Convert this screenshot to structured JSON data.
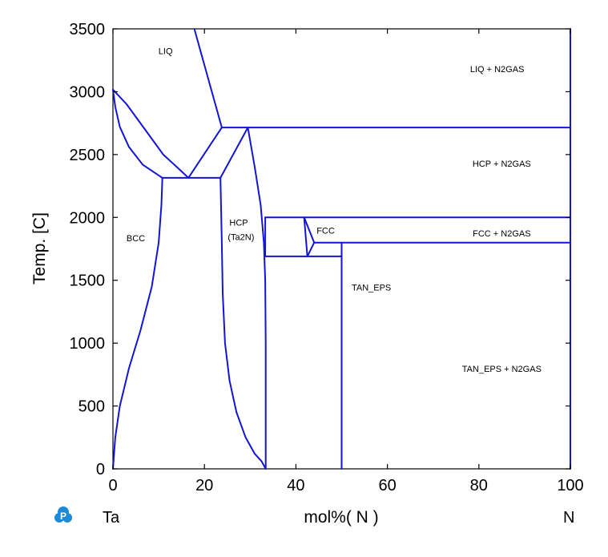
{
  "chart_data": {
    "type": "line",
    "title": "",
    "xlabel": "mol%( N )",
    "ylabel": "Temp. [C]",
    "xlim": [
      0,
      100
    ],
    "ylim": [
      0,
      3500
    ],
    "x_ticks": [
      "0",
      "20",
      "40",
      "60",
      "80",
      "100"
    ],
    "y_ticks": [
      "0",
      "500",
      "1000",
      "1500",
      "2000",
      "2500",
      "3000",
      "3500"
    ],
    "x_tick_values": [
      0,
      20,
      40,
      60,
      80,
      100
    ],
    "y_tick_values": [
      0,
      500,
      1000,
      1500,
      2000,
      2500,
      3000,
      3500
    ],
    "left_element": "Ta",
    "right_element": "N",
    "line_color": "#1414d6",
    "grid": false,
    "regions": [
      {
        "label": "LIQ",
        "x": 11.5,
        "y": 3300
      },
      {
        "label": "LIQ + N2GAS",
        "x": 84,
        "y": 3155
      },
      {
        "label": "HCP + N2GAS",
        "x": 85,
        "y": 2405
      },
      {
        "label": "BCC",
        "x": 5,
        "y": 1810
      },
      {
        "label": "HCP",
        "x": 27.5,
        "y": 1935
      },
      {
        "label": "(Ta2N)",
        "x": 28,
        "y": 1820
      },
      {
        "label": "FCC",
        "x": 46.5,
        "y": 1870
      },
      {
        "label": "FCC + N2GAS",
        "x": 85,
        "y": 1850
      },
      {
        "label": "TAN_EPS",
        "x": 56.5,
        "y": 1420
      },
      {
        "label": "TAN_EPS + N2GAS",
        "x": 85,
        "y": 770
      }
    ],
    "series": [
      {
        "points": [
          [
            0,
            3017
          ],
          [
            3,
            2900
          ],
          [
            7,
            2700
          ],
          [
            11,
            2500
          ],
          [
            14,
            2400
          ],
          [
            16.5,
            2315
          ]
        ]
      },
      {
        "points": [
          [
            0,
            3017
          ],
          [
            0.5,
            2880
          ],
          [
            1.5,
            2720
          ],
          [
            3.5,
            2560
          ],
          [
            6.5,
            2420
          ],
          [
            10.8,
            2315
          ]
        ]
      },
      {
        "points": [
          [
            10.8,
            2315
          ],
          [
            16.5,
            2315
          ],
          [
            23.5,
            2315
          ]
        ]
      },
      {
        "points": [
          [
            10.8,
            2315
          ],
          [
            10.6,
            2100
          ],
          [
            10,
            1800
          ],
          [
            8.5,
            1450
          ],
          [
            6,
            1100
          ],
          [
            3.5,
            800
          ],
          [
            1.5,
            500
          ],
          [
            0.5,
            250
          ],
          [
            0,
            0
          ]
        ]
      },
      {
        "points": [
          [
            16.5,
            2315
          ],
          [
            23.8,
            2715
          ]
        ]
      },
      {
        "points": [
          [
            17.8,
            3500
          ],
          [
            23.8,
            2715
          ]
        ]
      },
      {
        "points": [
          [
            23.8,
            2715
          ],
          [
            100,
            2715
          ]
        ]
      },
      {
        "points": [
          [
            23.5,
            2315
          ],
          [
            29.5,
            2715
          ]
        ]
      },
      {
        "points": [
          [
            29.5,
            2715
          ],
          [
            31,
            2400
          ],
          [
            32.3,
            2100
          ],
          [
            33,
            1800
          ],
          [
            33.3,
            1500
          ],
          [
            33.4,
            1000
          ],
          [
            33.4,
            500
          ],
          [
            33.4,
            0
          ]
        ]
      },
      {
        "points": [
          [
            23.5,
            2315
          ],
          [
            23.8,
            1800
          ],
          [
            24,
            1400
          ],
          [
            24.5,
            1000
          ],
          [
            25.5,
            700
          ],
          [
            27,
            450
          ],
          [
            29,
            250
          ],
          [
            31,
            120
          ],
          [
            32.5,
            60
          ],
          [
            33.4,
            0
          ]
        ]
      },
      {
        "points": [
          [
            33.3,
            2000
          ],
          [
            100,
            2000
          ]
        ]
      },
      {
        "points": [
          [
            33.4,
            1690
          ],
          [
            50,
            1690
          ]
        ]
      },
      {
        "points": [
          [
            33.3,
            1690
          ],
          [
            33.3,
            2000
          ]
        ]
      },
      {
        "points": [
          [
            41.8,
            2000
          ],
          [
            42.5,
            1690
          ]
        ]
      },
      {
        "points": [
          [
            41.8,
            2000
          ],
          [
            44,
            1800
          ]
        ]
      },
      {
        "points": [
          [
            42.5,
            1690
          ],
          [
            44,
            1800
          ]
        ]
      },
      {
        "points": [
          [
            44,
            1800
          ],
          [
            100,
            1800
          ]
        ]
      },
      {
        "points": [
          [
            50,
            0
          ],
          [
            50,
            1800
          ]
        ]
      },
      {
        "points": [
          [
            100,
            0
          ],
          [
            100,
            3500
          ]
        ]
      }
    ]
  }
}
